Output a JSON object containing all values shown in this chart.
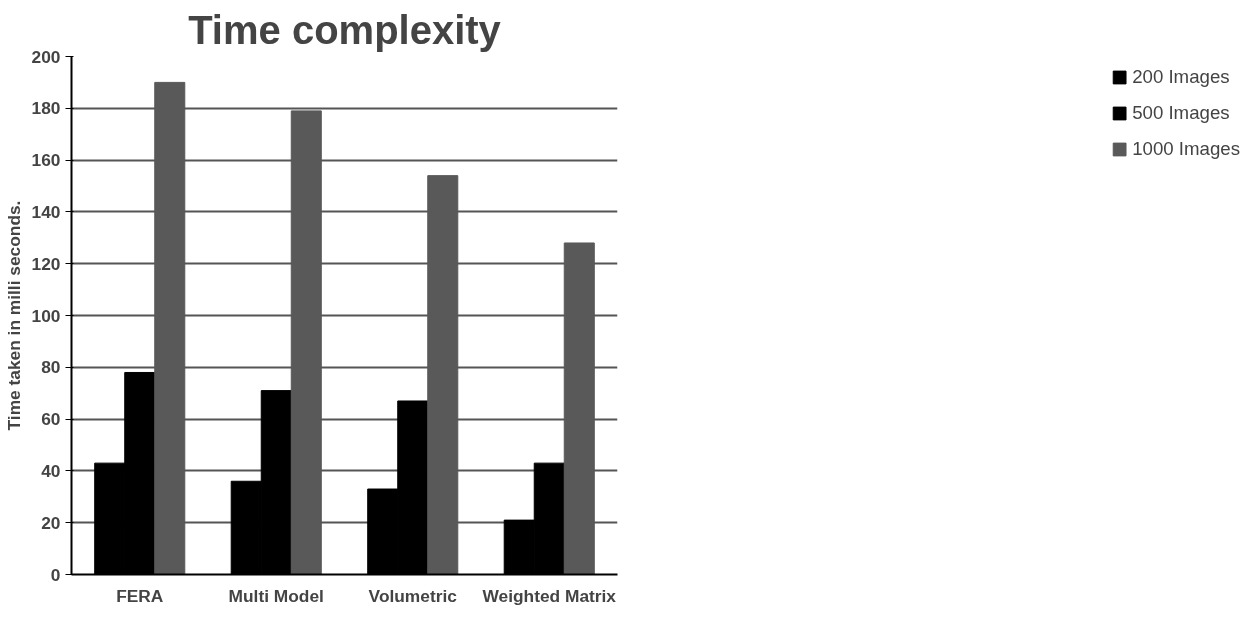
{
  "chart_data": {
    "type": "bar",
    "title": "Time complexity",
    "ylabel": "Time taken in milli seconds.",
    "categories": [
      "FERA",
      "Multi Model",
      "Volumetric",
      "Weighted Matrix"
    ],
    "series": [
      {
        "name": "200 Images",
        "color": "#000000",
        "values": [
          43,
          36,
          33,
          21
        ]
      },
      {
        "name": "500 Images",
        "color": "#000000",
        "values": [
          78,
          71,
          67,
          43
        ]
      },
      {
        "name": "1000 Images",
        "color": "#595959",
        "values": [
          190,
          179,
          154,
          128
        ]
      }
    ],
    "ylim": [
      0,
      200
    ],
    "yticks": [
      0,
      20,
      40,
      60,
      80,
      100,
      120,
      140,
      160,
      180,
      200
    ],
    "grid": "y",
    "legend": "right"
  }
}
